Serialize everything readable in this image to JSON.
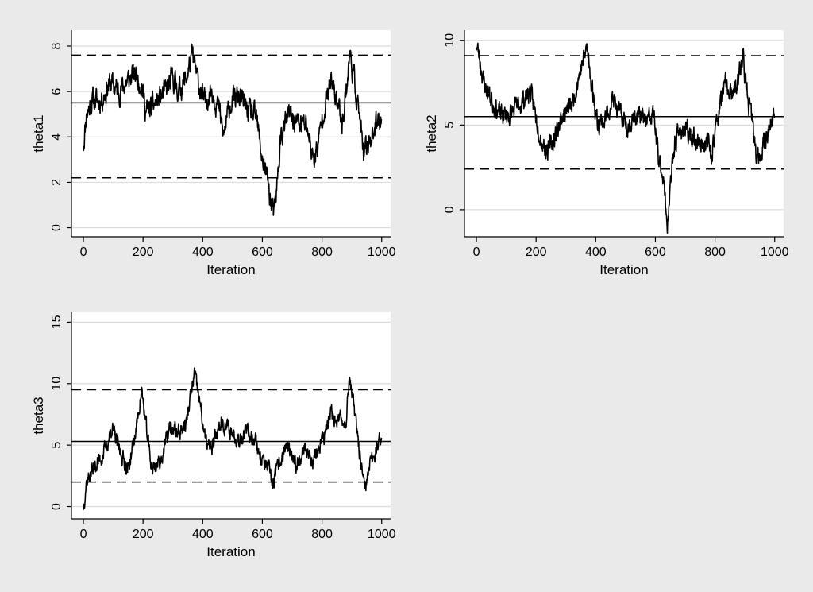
{
  "colors": {
    "page_background": "#eaeaea",
    "plot_background": "#ffffff",
    "grid": "#dcdcdc",
    "trace": "#000000",
    "reference_lines": "#000000"
  },
  "chart_data": [
    {
      "id": "theta1",
      "type": "line",
      "xlabel": "Iteration",
      "ylabel": "theta1",
      "xlim": [
        -40,
        1030
      ],
      "ylim": [
        -0.4,
        8.7
      ],
      "xticks": [
        0,
        200,
        400,
        600,
        800,
        1000
      ],
      "yticks": [
        0,
        2,
        4,
        6,
        8
      ],
      "grid": true,
      "hlines": [
        {
          "y": 7.6,
          "style": "dashed"
        },
        {
          "y": 5.5,
          "style": "solid"
        },
        {
          "y": 2.2,
          "style": "dashed"
        }
      ],
      "series": [
        {
          "n": 1000,
          "seed": 11,
          "noise": 0.42,
          "anchors": [
            [
              0,
              3.6
            ],
            [
              10,
              5.0
            ],
            [
              30,
              5.6
            ],
            [
              60,
              5.6
            ],
            [
              90,
              6.4
            ],
            [
              120,
              6.0
            ],
            [
              150,
              6.5
            ],
            [
              175,
              6.8
            ],
            [
              195,
              6.3
            ],
            [
              210,
              5.1
            ],
            [
              230,
              5.3
            ],
            [
              250,
              5.6
            ],
            [
              275,
              6.0
            ],
            [
              300,
              6.6
            ],
            [
              320,
              6.0
            ],
            [
              345,
              6.6
            ],
            [
              365,
              7.6
            ],
            [
              385,
              6.4
            ],
            [
              405,
              5.5
            ],
            [
              430,
              6.1
            ],
            [
              455,
              5.2
            ],
            [
              470,
              4.0
            ],
            [
              490,
              5.4
            ],
            [
              520,
              5.8
            ],
            [
              550,
              5.2
            ],
            [
              580,
              4.8
            ],
            [
              600,
              3.0
            ],
            [
              615,
              2.3
            ],
            [
              630,
              1.0
            ],
            [
              640,
              0.5
            ],
            [
              650,
              2.0
            ],
            [
              662,
              4.0
            ],
            [
              690,
              5.0
            ],
            [
              720,
              4.6
            ],
            [
              750,
              4.5
            ],
            [
              770,
              3.0
            ],
            [
              785,
              3.5
            ],
            [
              805,
              5.2
            ],
            [
              830,
              6.4
            ],
            [
              850,
              5.6
            ],
            [
              868,
              4.7
            ],
            [
              885,
              6.5
            ],
            [
              893,
              7.7
            ],
            [
              905,
              6.8
            ],
            [
              925,
              5.0
            ],
            [
              940,
              3.0
            ],
            [
              955,
              3.8
            ],
            [
              975,
              4.3
            ],
            [
              1000,
              5.0
            ]
          ]
        }
      ]
    },
    {
      "id": "theta2",
      "type": "line",
      "xlabel": "Iteration",
      "ylabel": "theta2",
      "xlim": [
        -40,
        1030
      ],
      "ylim": [
        -1.6,
        10.6
      ],
      "xticks": [
        0,
        200,
        400,
        600,
        800,
        1000
      ],
      "yticks": [
        0,
        5,
        10
      ],
      "grid": true,
      "hlines": [
        {
          "y": 9.1,
          "style": "dashed"
        },
        {
          "y": 5.5,
          "style": "solid"
        },
        {
          "y": 2.4,
          "style": "dashed"
        }
      ],
      "series": [
        {
          "n": 1000,
          "seed": 23,
          "noise": 0.5,
          "anchors": [
            [
              0,
              9.8
            ],
            [
              10,
              9.0
            ],
            [
              25,
              7.5
            ],
            [
              50,
              6.5
            ],
            [
              80,
              5.6
            ],
            [
              110,
              5.6
            ],
            [
              150,
              6.3
            ],
            [
              180,
              7.0
            ],
            [
              200,
              5.5
            ],
            [
              220,
              4.0
            ],
            [
              240,
              3.5
            ],
            [
              260,
              4.2
            ],
            [
              290,
              5.6
            ],
            [
              320,
              6.2
            ],
            [
              345,
              8.0
            ],
            [
              370,
              9.6
            ],
            [
              385,
              7.6
            ],
            [
              405,
              5.2
            ],
            [
              430,
              5.2
            ],
            [
              455,
              6.6
            ],
            [
              480,
              5.6
            ],
            [
              510,
              5.0
            ],
            [
              540,
              5.6
            ],
            [
              570,
              5.2
            ],
            [
              595,
              5.6
            ],
            [
              610,
              3.0
            ],
            [
              625,
              2.2
            ],
            [
              633,
              0.5
            ],
            [
              640,
              -0.8
            ],
            [
              650,
              1.2
            ],
            [
              665,
              4.0
            ],
            [
              690,
              4.8
            ],
            [
              720,
              4.3
            ],
            [
              745,
              4.0
            ],
            [
              770,
              4.0
            ],
            [
              790,
              3.4
            ],
            [
              810,
              5.6
            ],
            [
              835,
              7.4
            ],
            [
              860,
              6.6
            ],
            [
              880,
              7.8
            ],
            [
              893,
              9.2
            ],
            [
              905,
              7.0
            ],
            [
              925,
              5.2
            ],
            [
              940,
              2.8
            ],
            [
              960,
              3.8
            ],
            [
              985,
              5.0
            ],
            [
              1000,
              5.4
            ]
          ]
        }
      ]
    },
    {
      "id": "theta3",
      "type": "line",
      "xlabel": "Iteration",
      "ylabel": "theta3",
      "xlim": [
        -40,
        1030
      ],
      "ylim": [
        -1.0,
        15.8
      ],
      "xticks": [
        0,
        200,
        400,
        600,
        800,
        1000
      ],
      "yticks": [
        0,
        5,
        10,
        15
      ],
      "grid": true,
      "hlines": [
        {
          "y": 9.5,
          "style": "dashed"
        },
        {
          "y": 5.3,
          "style": "solid"
        },
        {
          "y": 2.0,
          "style": "dashed"
        }
      ],
      "series": [
        {
          "n": 1000,
          "seed": 37,
          "noise": 0.55,
          "anchors": [
            [
              0,
              0.0
            ],
            [
              10,
              2.0
            ],
            [
              30,
              3.0
            ],
            [
              60,
              4.0
            ],
            [
              80,
              5.0
            ],
            [
              95,
              6.5
            ],
            [
              120,
              4.6
            ],
            [
              150,
              3.0
            ],
            [
              175,
              6.0
            ],
            [
              195,
              9.5
            ],
            [
              210,
              6.5
            ],
            [
              230,
              3.0
            ],
            [
              260,
              3.8
            ],
            [
              290,
              6.4
            ],
            [
              320,
              6.0
            ],
            [
              345,
              6.8
            ],
            [
              372,
              10.8
            ],
            [
              390,
              8.5
            ],
            [
              410,
              5.2
            ],
            [
              430,
              4.6
            ],
            [
              460,
              7.0
            ],
            [
              490,
              6.2
            ],
            [
              520,
              5.6
            ],
            [
              550,
              6.0
            ],
            [
              575,
              5.6
            ],
            [
              595,
              4.0
            ],
            [
              620,
              3.0
            ],
            [
              635,
              1.8
            ],
            [
              650,
              3.0
            ],
            [
              680,
              5.0
            ],
            [
              710,
              3.2
            ],
            [
              740,
              4.8
            ],
            [
              770,
              3.8
            ],
            [
              800,
              5.2
            ],
            [
              830,
              7.5
            ],
            [
              855,
              7.0
            ],
            [
              880,
              7.0
            ],
            [
              893,
              10.6
            ],
            [
              910,
              7.4
            ],
            [
              930,
              3.5
            ],
            [
              943,
              1.2
            ],
            [
              960,
              3.2
            ],
            [
              985,
              5.0
            ],
            [
              1000,
              5.6
            ]
          ]
        }
      ]
    }
  ]
}
